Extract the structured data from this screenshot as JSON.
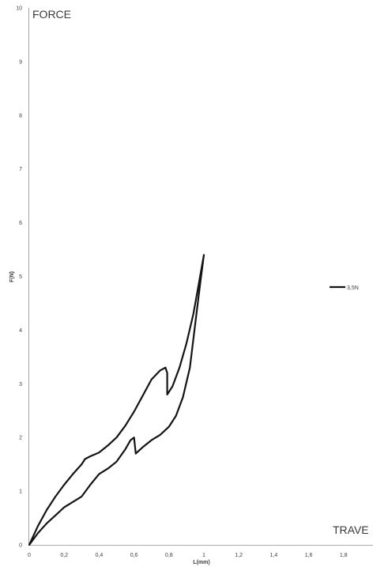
{
  "chart_data": {
    "type": "line",
    "title": "",
    "xlabel": "L(mm)",
    "ylabel": "F(N)",
    "corner_labels": {
      "top_left": "FORCE",
      "bottom_right": "TRAVE"
    },
    "xlim": [
      0,
      2
    ],
    "ylim": [
      0,
      10
    ],
    "x_ticks": [
      "0",
      "0,2",
      "0,4",
      "0,6",
      "0,8",
      "1",
      "1,2",
      "1,4",
      "1,6",
      "1,8"
    ],
    "x_tick_values": [
      0,
      0.2,
      0.4,
      0.6,
      0.8,
      1,
      1.2,
      1.4,
      1.6,
      1.8
    ],
    "y_ticks": [
      "0",
      "1",
      "2",
      "3",
      "4",
      "5",
      "6",
      "7",
      "8",
      "9",
      "10"
    ],
    "y_tick_values": [
      0,
      1,
      2,
      3,
      4,
      5,
      6,
      7,
      8,
      9,
      10
    ],
    "grid": false,
    "legend_position": "right",
    "series": [
      {
        "name": "3,5N",
        "color": "#141414",
        "points": [
          [
            0,
            0
          ],
          [
            0.05,
            0.35
          ],
          [
            0.1,
            0.65
          ],
          [
            0.15,
            0.9
          ],
          [
            0.2,
            1.12
          ],
          [
            0.25,
            1.32
          ],
          [
            0.3,
            1.5
          ],
          [
            0.32,
            1.6
          ],
          [
            0.35,
            1.65
          ],
          [
            0.4,
            1.72
          ],
          [
            0.45,
            1.85
          ],
          [
            0.5,
            2.0
          ],
          [
            0.55,
            2.22
          ],
          [
            0.6,
            2.48
          ],
          [
            0.65,
            2.78
          ],
          [
            0.7,
            3.08
          ],
          [
            0.75,
            3.25
          ],
          [
            0.78,
            3.3
          ],
          [
            0.79,
            3.2
          ],
          [
            0.79,
            2.8
          ],
          [
            0.82,
            2.95
          ],
          [
            0.86,
            3.3
          ],
          [
            0.9,
            3.75
          ],
          [
            0.94,
            4.3
          ],
          [
            0.97,
            4.85
          ],
          [
            1.0,
            5.4
          ],
          [
            0.98,
            4.9
          ],
          [
            0.95,
            4.1
          ],
          [
            0.92,
            3.3
          ],
          [
            0.88,
            2.75
          ],
          [
            0.84,
            2.4
          ],
          [
            0.8,
            2.2
          ],
          [
            0.75,
            2.05
          ],
          [
            0.7,
            1.95
          ],
          [
            0.65,
            1.82
          ],
          [
            0.62,
            1.73
          ],
          [
            0.61,
            1.7
          ],
          [
            0.605,
            1.85
          ],
          [
            0.6,
            2.0
          ],
          [
            0.58,
            1.95
          ],
          [
            0.55,
            1.78
          ],
          [
            0.5,
            1.55
          ],
          [
            0.45,
            1.42
          ],
          [
            0.4,
            1.32
          ],
          [
            0.35,
            1.12
          ],
          [
            0.3,
            0.9
          ],
          [
            0.25,
            0.8
          ],
          [
            0.2,
            0.7
          ],
          [
            0.15,
            0.55
          ],
          [
            0.1,
            0.4
          ],
          [
            0.05,
            0.22
          ],
          [
            0,
            0
          ]
        ]
      }
    ]
  }
}
